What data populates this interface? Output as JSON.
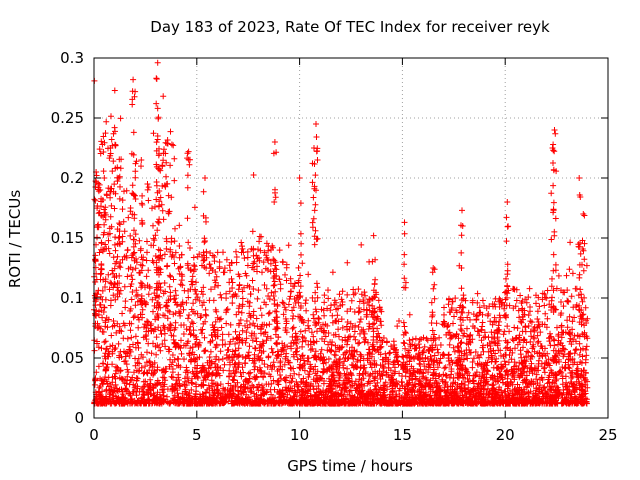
{
  "chart_data": {
    "type": "scatter",
    "title": "Day 183 of 2023, Rate Of TEC Index for receiver reyk",
    "xlabel": "GPS time / hours",
    "ylabel": "ROTI / TECUs",
    "xlim": [
      0,
      25
    ],
    "ylim": [
      0,
      0.3
    ],
    "x_ticks": [
      "0",
      "5",
      "10",
      "15",
      "20",
      "25"
    ],
    "y_ticks": [
      "0",
      "0.05",
      "0.1",
      "0.15",
      "0.2",
      "0.25",
      "0.3"
    ],
    "grid": true,
    "marker": "plus",
    "colors": {
      "series": "#ff0000",
      "grid": "#a0a0a0",
      "axis": "#000000"
    },
    "series": [
      {
        "values_description_omitted": false,
        "peaks": [
          {
            "x": 0.1,
            "y": 0.205
          },
          {
            "x": 0.3,
            "y": 0.19
          },
          {
            "x": 0.5,
            "y": 0.2
          },
          {
            "x": 0.8,
            "y": 0.225
          },
          {
            "x": 1.0,
            "y": 0.242
          },
          {
            "x": 1.2,
            "y": 0.2
          },
          {
            "x": 1.9,
            "y": 0.282
          },
          {
            "x": 2.0,
            "y": 0.272
          },
          {
            "x": 2.3,
            "y": 0.215
          },
          {
            "x": 2.6,
            "y": 0.195
          },
          {
            "x": 3.1,
            "y": 0.296
          },
          {
            "x": 3.1,
            "y": 0.258
          },
          {
            "x": 3.1,
            "y": 0.235
          },
          {
            "x": 4.6,
            "y": 0.222
          },
          {
            "x": 5.4,
            "y": 0.2
          },
          {
            "x": 8.8,
            "y": 0.23
          },
          {
            "x": 10.0,
            "y": 0.2
          },
          {
            "x": 10.8,
            "y": 0.245
          },
          {
            "x": 10.7,
            "y": 0.225
          },
          {
            "x": 13.6,
            "y": 0.152
          },
          {
            "x": 15.1,
            "y": 0.163
          },
          {
            "x": 16.5,
            "y": 0.125
          },
          {
            "x": 17.9,
            "y": 0.173
          },
          {
            "x": 20.1,
            "y": 0.18
          },
          {
            "x": 22.4,
            "y": 0.24
          },
          {
            "x": 22.3,
            "y": 0.225
          },
          {
            "x": 23.6,
            "y": 0.2
          },
          {
            "x": 23.8,
            "y": 0.17
          }
        ]
      }
    ]
  }
}
